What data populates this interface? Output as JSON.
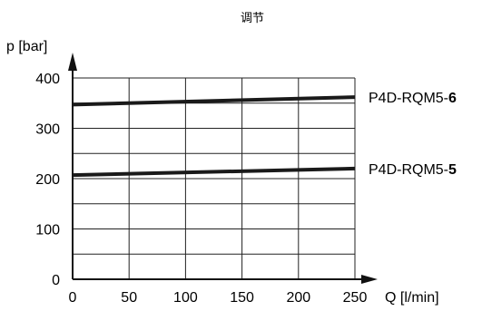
{
  "chart_data": {
    "type": "line",
    "title": "调节",
    "xlabel": "Q [l/min]",
    "ylabel": "p [bar]",
    "xlim": [
      0,
      250
    ],
    "ylim": [
      0,
      400
    ],
    "x_ticks": [
      0,
      50,
      100,
      150,
      200,
      250
    ],
    "y_ticks": [
      0,
      100,
      200,
      300,
      400
    ],
    "x_grid": [
      0,
      50,
      100,
      150,
      200,
      250
    ],
    "y_grid": [
      0,
      50,
      100,
      150,
      200,
      250,
      300,
      350,
      400
    ],
    "grid": true,
    "series": [
      {
        "name": "P4D-RQM5-6",
        "name_prefix": "P4D-RQM5-",
        "name_suffix": "6",
        "x": [
          0,
          250
        ],
        "y": [
          347,
          362
        ]
      },
      {
        "name": "P4D-RQM5-5",
        "name_prefix": "P4D-RQM5-",
        "name_suffix": "5",
        "x": [
          0,
          250
        ],
        "y": [
          207,
          220
        ]
      }
    ]
  }
}
